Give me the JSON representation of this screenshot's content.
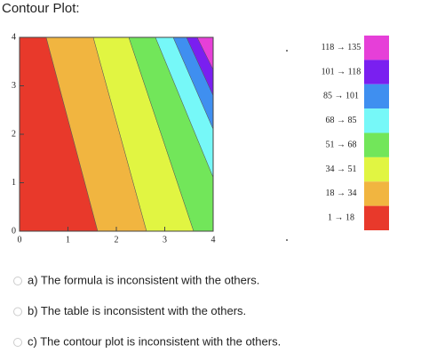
{
  "title": "Contour Plot:",
  "plot": {
    "xticks": [
      0,
      1,
      2,
      3,
      4
    ],
    "yticks": [
      0,
      1,
      2,
      3,
      4
    ]
  },
  "legend": [
    {
      "label": "118 → 135",
      "color": "#e63fd8"
    },
    {
      "label": "101 → 118",
      "color": "#7a1ff0"
    },
    {
      "label": "85 → 101",
      "color": "#3f8ff0"
    },
    {
      "label": "68 → 85",
      "color": "#76f8f8"
    },
    {
      "label": "51 → 68",
      "color": "#72e65a"
    },
    {
      "label": "34 → 51",
      "color": "#e1f542"
    },
    {
      "label": "18 → 34",
      "color": "#f1b540"
    },
    {
      "label": "1 → 18",
      "color": "#e8392b"
    }
  ],
  "options": [
    "a)  The formula is inconsistent with the others.",
    "b)  The table is inconsistent with the others.",
    "c)  The contour plot is inconsistent with the others."
  ]
}
